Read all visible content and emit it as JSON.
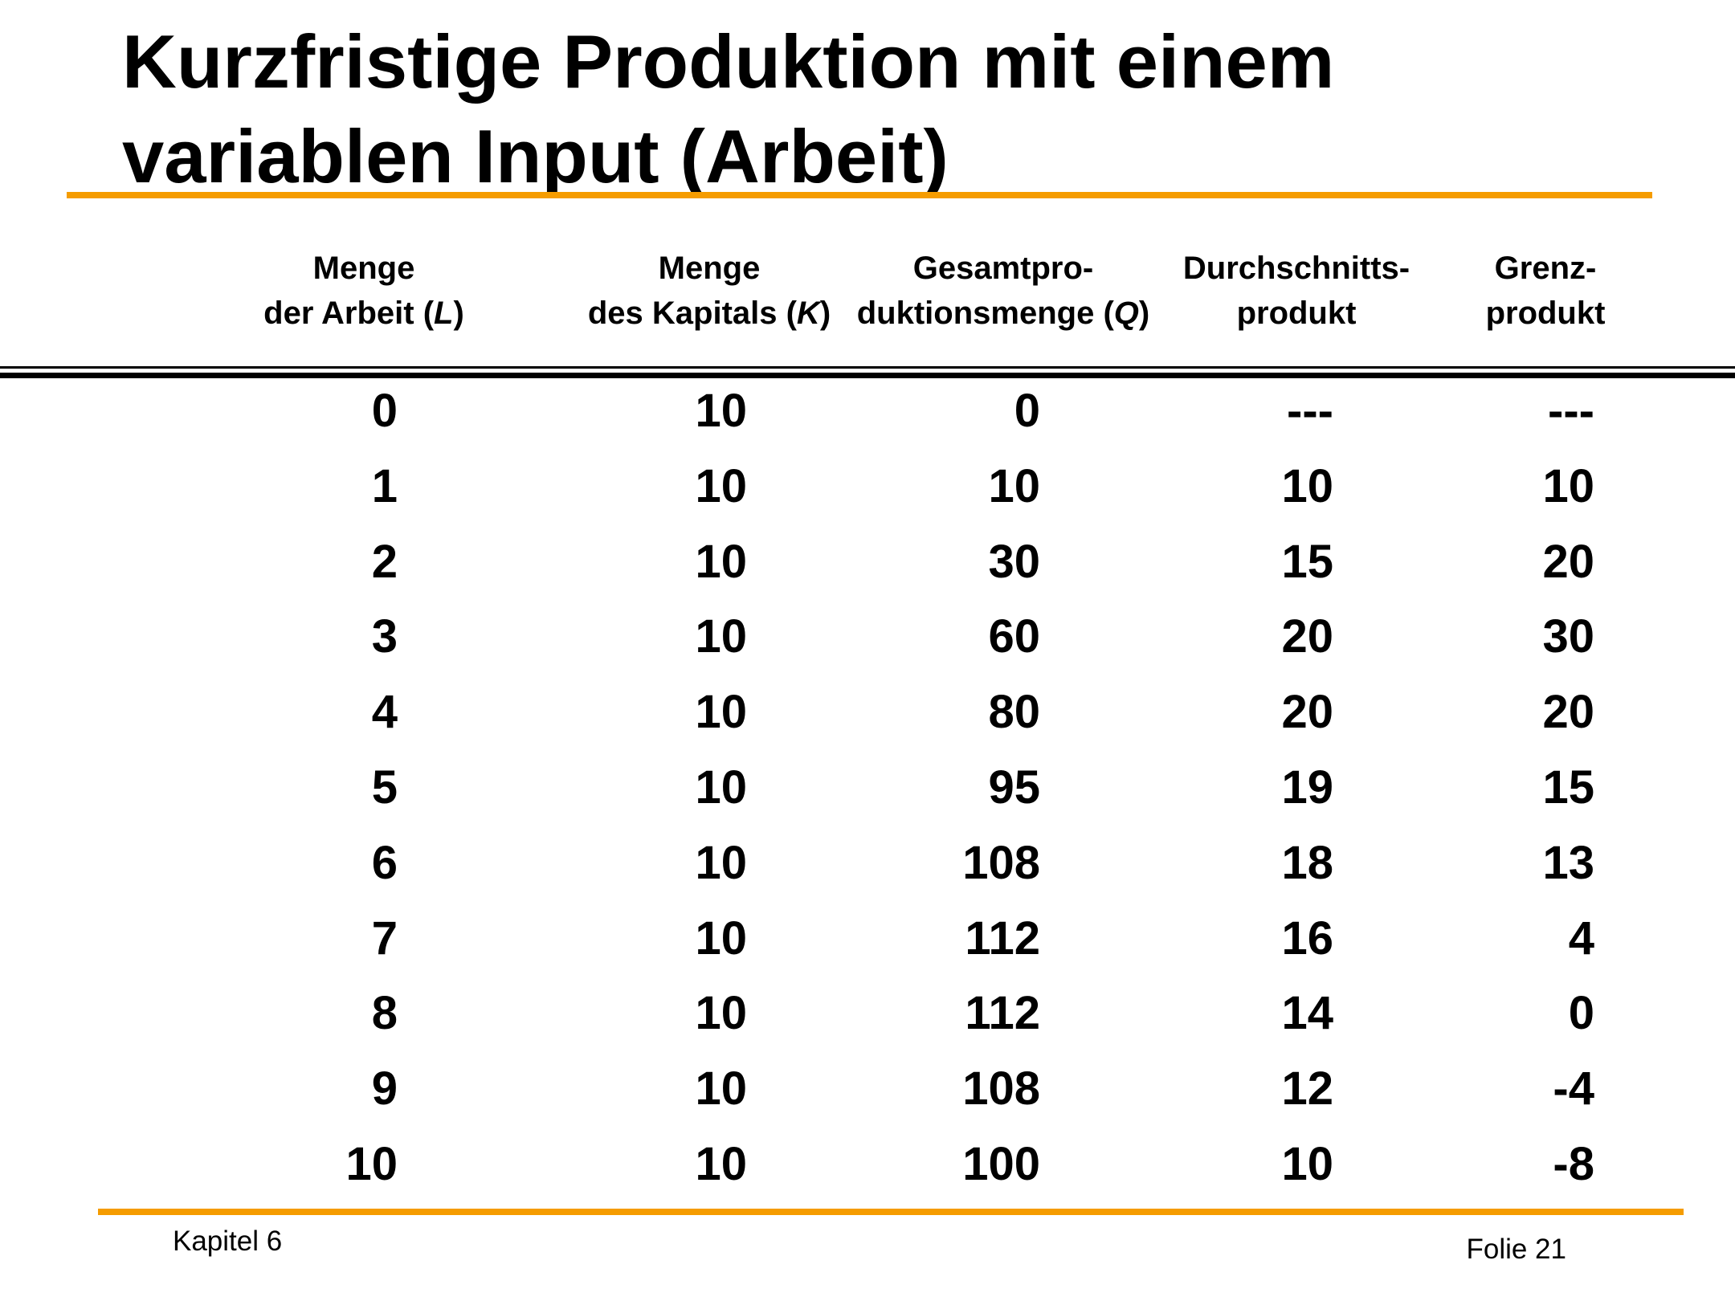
{
  "slide": {
    "title_line1": "Kurzfristige Produktion mit einem",
    "title_line2": "variablen Input (Arbeit)"
  },
  "table": {
    "headers": [
      {
        "line1": "Menge",
        "line2_pre": "der Arbeit (",
        "line2_var": "L",
        "line2_post": ")"
      },
      {
        "line1": "Menge",
        "line2_pre": "des Kapitals (",
        "line2_var": "K",
        "line2_post": ")"
      },
      {
        "line1": "Gesamtpro-",
        "line2_pre": "duktionsmenge (",
        "line2_var": "Q",
        "line2_post": ")"
      },
      {
        "line1": "Durchschnitts-",
        "line2_pre": "produkt",
        "line2_var": "",
        "line2_post": ""
      },
      {
        "line1": "Grenz-",
        "line2_pre": "produkt",
        "line2_var": "",
        "line2_post": ""
      }
    ],
    "rows": [
      [
        "0",
        "10",
        "0",
        "---",
        "---"
      ],
      [
        "1",
        "10",
        "10",
        "10",
        "10"
      ],
      [
        "2",
        "10",
        "30",
        "15",
        "20"
      ],
      [
        "3",
        "10",
        "60",
        "20",
        "30"
      ],
      [
        "4",
        "10",
        "80",
        "20",
        "20"
      ],
      [
        "5",
        "10",
        "95",
        "19",
        "15"
      ],
      [
        "6",
        "10",
        "108",
        "18",
        "13"
      ],
      [
        "7",
        "10",
        "112",
        "16",
        "4"
      ],
      [
        "8",
        "10",
        "112",
        "14",
        "0"
      ],
      [
        "9",
        "10",
        "108",
        "12",
        "-4"
      ],
      [
        "10",
        "10",
        "100",
        "10",
        "-8"
      ]
    ]
  },
  "footer": {
    "left": "Kapitel 6",
    "right": "Folie 21"
  },
  "colors": {
    "accent": "#f59c00",
    "text": "#000000",
    "background": "#ffffff"
  }
}
